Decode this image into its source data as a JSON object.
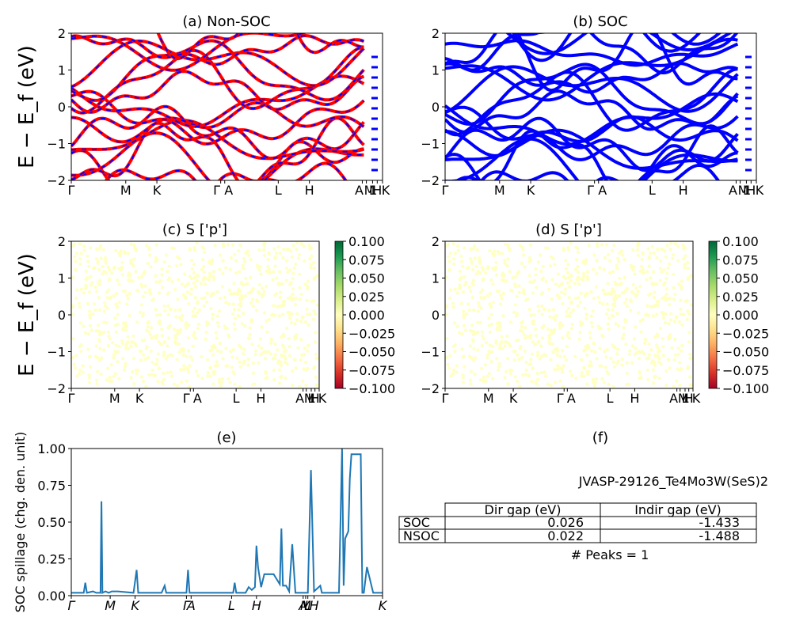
{
  "figure_id": "JVASP-29126_Te4Mo3W(SeS)2",
  "band_ylabel": "E − E_f (eV)",
  "spillage_ylabel": "SOC spillage (chg. den. unit)",
  "colors": {
    "nsoc_line": "#ff0000",
    "soc_line": "#0000ff",
    "dash": "#0000ff",
    "spillage": "#1f77b4",
    "cbar_bottom": "#a50026",
    "cbar_mid": "#ffffbf",
    "cbar_top": "#006837"
  },
  "chart_data": [
    {
      "id": "a",
      "type": "line",
      "title": "(a) Non-SOC",
      "xticks": [
        "Γ",
        "M",
        "K",
        "Γ",
        "A",
        "L",
        "H",
        "A",
        "M",
        "L",
        "H",
        "K"
      ],
      "ylim": [
        -2,
        2
      ],
      "yticks": [
        "−2",
        "−1",
        "0",
        "1",
        "2"
      ]
    },
    {
      "id": "b",
      "type": "line",
      "title": "(b) SOC",
      "xticks": [
        "Γ",
        "M",
        "K",
        "Γ",
        "A",
        "L",
        "H",
        "A",
        "M",
        "L",
        "H",
        "K"
      ],
      "ylim": [
        -2,
        2
      ],
      "yticks": [
        "−2",
        "−1",
        "0",
        "1",
        "2"
      ]
    },
    {
      "id": "c",
      "type": "scatter",
      "title": "(c)  S ['p']",
      "xticks": [
        "Γ",
        "M",
        "K",
        "Γ",
        "A",
        "L",
        "H",
        "A",
        "M",
        "L",
        "H",
        "K"
      ],
      "ylim": [
        -2,
        2
      ],
      "yticks": [
        "−2",
        "−1",
        "0",
        "1",
        "2"
      ],
      "colorbar_ticks": [
        "0.100",
        "0.075",
        "0.050",
        "0.025",
        "0.000",
        "−0.025",
        "−0.050",
        "−0.075",
        "−0.100"
      ]
    },
    {
      "id": "d",
      "type": "scatter",
      "title": "(d) S ['p']",
      "xticks": [
        "Γ",
        "M",
        "K",
        "Γ",
        "A",
        "L",
        "H",
        "A",
        "M",
        "L",
        "H",
        "K"
      ],
      "ylim": [
        -2,
        2
      ],
      "yticks": [
        "−2",
        "−1",
        "0",
        "1",
        "2"
      ],
      "colorbar_ticks": [
        "0.100",
        "0.075",
        "0.050",
        "0.025",
        "0.000",
        "−0.025",
        "−0.050",
        "−0.075",
        "−0.100"
      ]
    },
    {
      "id": "e",
      "type": "line",
      "title": "(e)",
      "xticks": [
        "Γ",
        "M",
        "K",
        "Γ",
        "A",
        "L",
        "H",
        "A",
        "M",
        "L",
        "H",
        "K"
      ],
      "ylim": [
        0,
        1.03
      ],
      "yticks": [
        "0.00",
        "0.25",
        "0.50",
        "0.75",
        "1.00"
      ],
      "x": [
        0,
        0.04,
        0.045,
        0.05,
        0.07,
        0.08,
        0.094,
        0.097,
        0.1,
        0.11,
        0.12,
        0.13,
        0.14,
        0.15,
        0.2,
        0.21,
        0.215,
        0.22,
        0.29,
        0.3,
        0.305,
        0.31,
        0.36,
        0.37,
        0.375,
        0.38,
        0.4,
        0.5,
        0.52,
        0.525,
        0.53,
        0.56,
        0.57,
        0.58,
        0.59,
        0.595,
        0.6,
        0.61,
        0.62,
        0.63,
        0.65,
        0.67,
        0.675,
        0.68,
        0.69,
        0.7,
        0.71,
        0.72,
        0.73,
        0.74,
        0.75,
        0.76,
        0.77,
        0.78,
        0.8,
        0.805,
        0.81,
        0.82,
        0.84,
        0.86,
        0.87,
        0.875,
        0.88,
        0.89,
        0.895,
        0.9,
        0.91,
        0.93,
        0.935,
        0.94,
        0.95,
        0.97,
        1.0
      ],
      "values": [
        0.02,
        0.02,
        0.09,
        0.02,
        0.03,
        0.02,
        0.02,
        0.66,
        0.02,
        0.03,
        0.02,
        0.03,
        0.03,
        0.03,
        0.02,
        0.18,
        0.02,
        0.02,
        0.02,
        0.07,
        0.02,
        0.02,
        0.02,
        0.02,
        0.18,
        0.02,
        0.02,
        0.02,
        0.02,
        0.09,
        0.02,
        0.02,
        0.06,
        0.04,
        0.06,
        0.35,
        0.2,
        0.06,
        0.15,
        0.15,
        0.15,
        0.08,
        0.47,
        0.07,
        0.07,
        0.03,
        0.36,
        0.02,
        0.02,
        0.02,
        0.02,
        0.02,
        0.88,
        0.03,
        0.07,
        0.02,
        0.02,
        0.02,
        0.02,
        0.02,
        1.03,
        0.07,
        0.4,
        0.45,
        0.82,
        0.99,
        0.99,
        0.99,
        0.02,
        0.02,
        0.2,
        0.02,
        0.02
      ]
    }
  ],
  "table": {
    "title": "(f)",
    "id_text": "JVASP-29126_Te4Mo3W(SeS)2",
    "headers": [
      "Dir gap (eV)",
      "Indir gap (eV)"
    ],
    "rows": [
      {
        "label": "SOC",
        "dir": "0.026",
        "indir": "-1.433"
      },
      {
        "label": "NSOC",
        "dir": "0.022",
        "indir": "-1.488"
      }
    ],
    "peaks": "# Peaks = 1"
  }
}
